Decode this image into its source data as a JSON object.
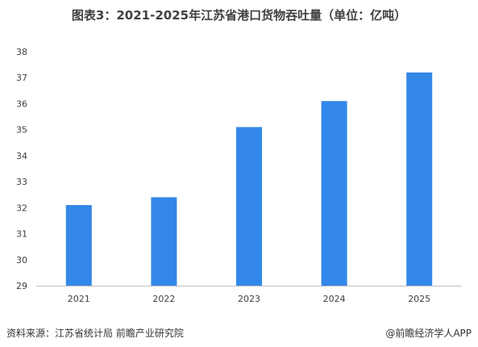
{
  "title": "图表3：2021-2025年江苏省港口货物吞吐量（单位：亿吨）",
  "source": "资料来源：江苏省统计局  前瞻产业研究院",
  "brand": "@前瞻经济学人APP",
  "colors": {
    "bar": "#3387E8",
    "axis": "#BFBFBF",
    "text": "#404040"
  },
  "chart_data": {
    "type": "bar",
    "title": "图表3：2021-2025年江苏省港口货物吞吐量（单位：亿吨）",
    "categories": [
      "2021",
      "2022",
      "2023",
      "2024",
      "2025"
    ],
    "values": [
      32.1,
      32.4,
      35.1,
      36.1,
      37.2
    ],
    "ylim": [
      29,
      38
    ],
    "yticks": [
      29,
      30,
      31,
      32,
      33,
      34,
      35,
      36,
      37,
      38
    ],
    "xlabel": "",
    "ylabel": "",
    "grid": false,
    "legend": "none"
  }
}
